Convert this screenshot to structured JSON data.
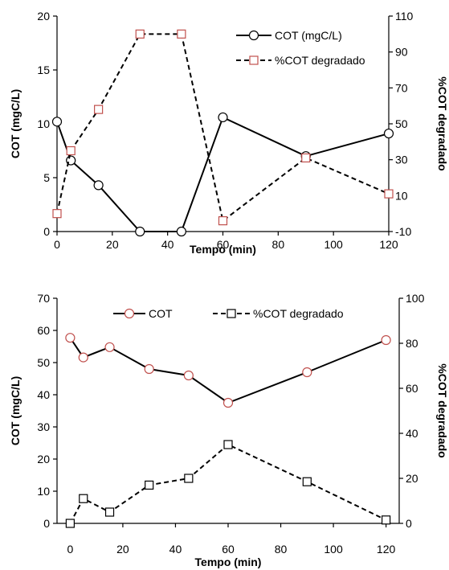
{
  "chart_data": [
    {
      "type": "line",
      "title": "",
      "xlabel": "Tempo (min)",
      "ylabel": "COT (mgC/L)",
      "y2label": "%COT degradado",
      "xlim": [
        0,
        120
      ],
      "ylim": [
        0,
        20
      ],
      "y2lim": [
        -10,
        110
      ],
      "x_ticks": [
        0,
        20,
        40,
        60,
        80,
        100,
        120
      ],
      "y_ticks": [
        0,
        5,
        10,
        15,
        20
      ],
      "y2_ticks": [
        -10,
        10,
        30,
        50,
        70,
        90,
        110
      ],
      "grid": false,
      "legend_position": "top-right",
      "series": [
        {
          "name": "COT (mgC/L)",
          "axis": "left",
          "line_style": "solid",
          "marker": "circle",
          "marker_edge": "#000000",
          "marker_fill": "#ffffff",
          "x": [
            0,
            5,
            15,
            30,
            45,
            60,
            90,
            120
          ],
          "y": [
            10.2,
            6.6,
            4.3,
            0,
            0,
            10.6,
            7.0,
            9.1
          ]
        },
        {
          "name": "%COT degradado",
          "axis": "right",
          "line_style": "dashed",
          "marker": "square",
          "marker_edge": "#c0504d",
          "marker_fill": "#ffffff",
          "x": [
            0,
            5,
            15,
            30,
            45,
            60,
            90,
            120
          ],
          "y": [
            0,
            35,
            58,
            100,
            100,
            -4,
            31,
            11
          ]
        }
      ]
    },
    {
      "type": "line",
      "title": "",
      "xlabel": "Tempo (min)",
      "ylabel": "COT (mgC/L)",
      "y2label": "%COT degradado",
      "xlim": [
        -5,
        125
      ],
      "ylim": [
        0,
        70
      ],
      "y2lim": [
        0,
        100
      ],
      "x_ticks": [
        0,
        20,
        40,
        60,
        80,
        100,
        120
      ],
      "y_ticks": [
        0,
        10,
        20,
        30,
        40,
        50,
        60,
        70
      ],
      "y2_ticks": [
        0,
        20,
        40,
        60,
        80,
        100
      ],
      "grid": false,
      "legend_position": "top",
      "series": [
        {
          "name": "COT",
          "axis": "left",
          "line_style": "solid",
          "marker": "circle",
          "marker_edge": "#c0504d",
          "marker_fill": "#ffffff",
          "x": [
            0,
            5,
            15,
            30,
            45,
            60,
            90,
            120
          ],
          "y": [
            57.7,
            51.6,
            54.8,
            48.0,
            46.0,
            37.5,
            47.0,
            57.0
          ]
        },
        {
          "name": "%COT degradado",
          "axis": "right",
          "line_style": "dashed",
          "marker": "square",
          "marker_edge": "#000000",
          "marker_fill": "#ffffff",
          "x": [
            0,
            5,
            15,
            30,
            45,
            60,
            90,
            120
          ],
          "y": [
            0,
            11,
            5,
            17,
            20,
            35,
            18.5,
            1.5
          ]
        }
      ]
    }
  ]
}
